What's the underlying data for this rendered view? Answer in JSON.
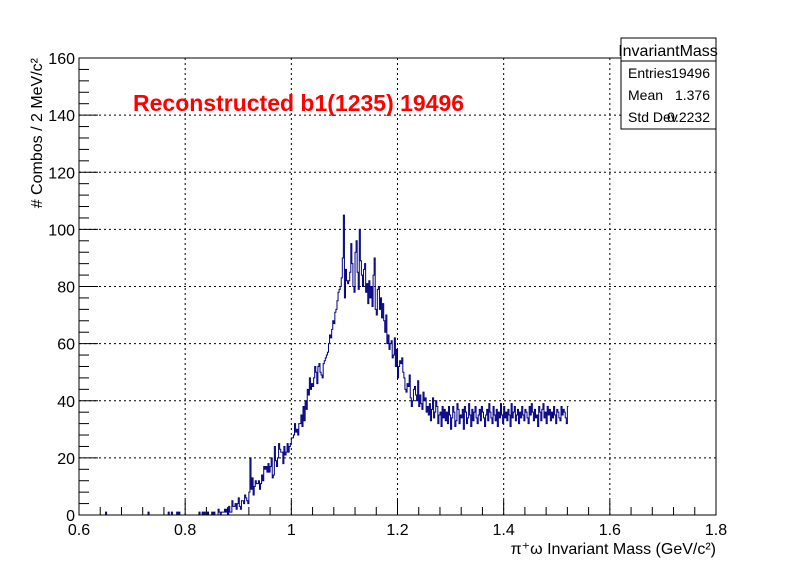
{
  "chart_data": {
    "type": "histogram",
    "title": "",
    "annotation": "Reconstructed b1(1235) 19496",
    "xlabel": "π⁺ω Invariant Mass (GeV/c²)",
    "ylabel": "# Combos / 2 MeV/c²",
    "xlim": [
      0.6,
      1.8
    ],
    "ylim": [
      0,
      160
    ],
    "x_ticks": [
      0.6,
      0.8,
      1,
      1.2,
      1.4,
      1.6,
      1.8
    ],
    "x_tick_labels": [
      "0.6",
      "0.8",
      "1",
      "1.2",
      "1.4",
      "1.6",
      "1.8"
    ],
    "y_ticks": [
      0,
      20,
      40,
      60,
      80,
      100,
      120,
      140,
      160
    ],
    "y_tick_labels": [
      "0",
      "20",
      "40",
      "60",
      "80",
      "100",
      "120",
      "140",
      "160"
    ],
    "grid": true,
    "line_color": "#000080",
    "annotation_color": "#ff0000",
    "bin_width": 0.002,
    "bins": {
      "start": 0.6,
      "values": [
        0,
        0,
        0,
        0,
        0,
        0,
        0,
        0,
        0,
        0,
        0,
        0,
        0,
        0,
        0,
        0,
        0,
        0,
        0,
        0,
        0,
        0,
        0,
        0,
        0,
        1,
        0,
        0,
        0,
        0,
        0,
        0,
        0,
        0,
        0,
        0,
        0,
        0,
        0,
        0,
        0,
        0,
        0,
        0,
        0,
        0,
        0,
        0,
        0,
        0,
        0,
        0,
        0,
        0,
        0,
        0,
        0,
        0,
        0,
        0,
        0,
        0,
        0,
        0,
        0,
        1,
        0,
        0,
        0,
        0,
        0,
        0,
        0,
        0,
        0,
        0,
        0,
        0,
        0,
        0,
        0,
        0,
        0,
        0,
        1,
        0,
        0,
        1,
        0,
        0,
        0,
        0,
        1,
        0,
        1,
        0,
        0,
        0,
        0,
        0,
        0,
        0,
        0,
        0,
        0,
        0,
        0,
        0,
        0,
        0,
        0,
        0,
        0,
        1,
        0,
        0,
        1,
        0,
        1,
        0,
        0,
        1,
        0,
        0,
        0,
        1,
        0,
        1,
        0,
        0,
        0,
        2,
        1,
        0,
        1,
        1,
        1,
        2,
        1,
        2,
        0,
        3,
        1,
        1,
        5,
        3,
        3,
        4,
        2,
        4,
        6,
        3,
        2,
        5,
        5,
        4,
        7,
        6,
        5,
        4,
        8,
        20,
        9,
        13,
        7,
        10,
        12,
        11,
        11,
        12,
        9,
        11,
        14,
        12,
        17,
        16,
        17,
        15,
        18,
        15,
        17,
        20,
        13,
        14,
        24,
        19,
        17,
        20,
        25,
        23,
        22,
        22,
        18,
        24,
        21,
        22,
        25,
        22,
        24,
        25,
        27,
        27,
        28,
        32,
        29,
        30,
        28,
        32,
        32,
        35,
        31,
        38,
        33,
        40,
        37,
        44,
        42,
        48,
        44,
        46,
        45,
        48,
        52,
        50,
        46,
        52,
        53,
        50,
        49,
        48,
        53,
        54,
        55,
        56,
        57,
        60,
        63,
        62,
        65,
        68,
        67,
        71,
        72,
        75,
        78,
        79,
        80,
        83,
        90,
        105,
        76,
        86,
        82,
        81,
        82,
        85,
        95,
        88,
        80,
        78,
        92,
        96,
        85,
        79,
        100,
        89,
        84,
        80,
        86,
        88,
        78,
        81,
        74,
        82,
        76,
        80,
        73,
        84,
        90,
        72,
        70,
        79,
        80,
        72,
        76,
        69,
        74,
        68,
        64,
        70,
        60,
        63,
        58,
        60,
        61,
        55,
        56,
        62,
        52,
        58,
        48,
        52,
        54,
        53,
        55,
        50,
        48,
        44,
        43,
        46,
        45,
        49,
        41,
        38,
        40,
        44,
        45,
        42,
        40,
        47,
        38,
        42,
        39,
        37,
        43,
        40,
        41,
        36,
        38,
        35,
        39,
        33,
        37,
        41,
        34,
        36,
        40,
        38,
        32,
        35,
        36,
        31,
        38,
        34,
        37,
        33,
        36,
        32,
        38,
        35,
        30,
        34,
        38,
        36,
        31,
        33,
        39,
        37,
        32,
        35,
        34,
        37,
        30,
        38,
        36,
        32,
        34,
        39,
        35,
        31,
        37,
        33,
        36,
        38,
        34,
        32,
        35,
        37,
        33,
        38,
        36,
        34,
        31,
        35,
        37,
        33,
        39,
        36,
        34,
        32,
        38,
        35,
        33,
        37,
        31,
        36,
        34,
        39,
        35,
        32,
        38,
        34,
        36,
        33,
        37,
        35,
        31,
        39,
        34,
        36,
        38,
        33,
        35,
        37,
        32,
        36,
        34,
        38,
        35,
        33,
        37,
        36,
        34,
        32,
        38,
        35,
        39,
        36,
        33,
        37,
        34,
        35,
        31,
        38,
        36,
        33,
        37,
        39,
        34,
        36,
        32,
        38,
        35,
        37,
        33,
        36,
        34,
        38,
        35,
        32,
        37,
        36,
        34,
        33,
        38,
        35,
        37,
        36,
        34,
        32,
        38
      ]
    },
    "stats_box": {
      "title": "InvariantMass",
      "rows": [
        {
          "label": "Entries",
          "value": "19496"
        },
        {
          "label": "Mean",
          "value": "1.376"
        },
        {
          "label": "Std Dev",
          "value": "0.2232"
        }
      ]
    }
  }
}
